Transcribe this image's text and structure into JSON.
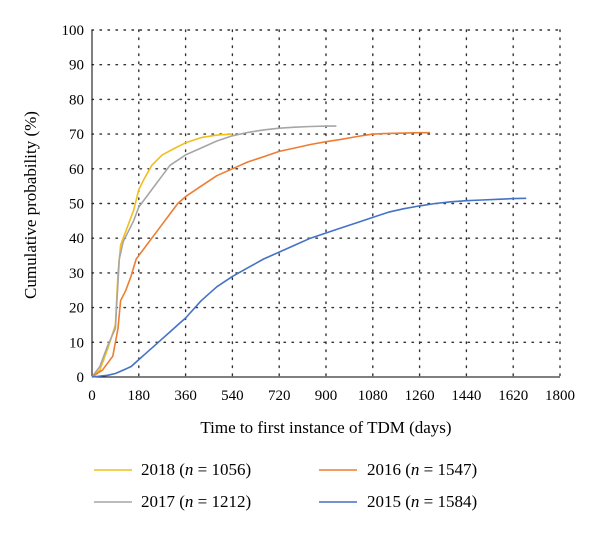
{
  "chart_data": {
    "type": "line",
    "title": "",
    "xlabel": "Time to first instance of TDM (days)",
    "ylabel": "Cumulative probability (%)",
    "xlim": [
      0,
      1800
    ],
    "ylim": [
      0,
      100
    ],
    "x_ticks": [
      "0",
      "180",
      "360",
      "540",
      "720",
      "900",
      "1080",
      "1260",
      "1440",
      "1620",
      "1800"
    ],
    "y_ticks": [
      "0",
      "10",
      "20",
      "30",
      "40",
      "50",
      "60",
      "70",
      "80",
      "90",
      "100"
    ],
    "grid": true,
    "legend_position": "bottom",
    "series": [
      {
        "name": "2018 (n = 1056)",
        "legend_parts": [
          "2018 (",
          "n",
          " = 1056)"
        ],
        "color": "#F2BE1E",
        "x": [
          0,
          30,
          60,
          90,
          100,
          110,
          125,
          140,
          160,
          180,
          200,
          230,
          270,
          320,
          360,
          420,
          480,
          540
        ],
        "y": [
          0,
          2,
          8,
          15,
          30,
          38,
          41,
          44,
          48,
          54,
          57,
          61,
          64,
          66,
          67.5,
          69,
          69.7,
          70
        ]
      },
      {
        "name": "2017 (n = 1212)",
        "legend_parts": [
          "2017 (",
          "n",
          " = 1212)"
        ],
        "color": "#A6A6A6",
        "x": [
          0,
          30,
          60,
          90,
          105,
          120,
          140,
          160,
          180,
          210,
          240,
          270,
          300,
          360,
          420,
          480,
          540,
          600,
          660,
          720,
          780,
          840,
          900,
          940
        ],
        "y": [
          0,
          3,
          9,
          14,
          34,
          39,
          42,
          45,
          49,
          52,
          55,
          58,
          61,
          64,
          66,
          68,
          69.5,
          70.5,
          71.2,
          71.7,
          72,
          72.2,
          72.3,
          72.3
        ]
      },
      {
        "name": "2016 (n = 1547)",
        "legend_parts": [
          "2016 (",
          "n",
          " = 1547)"
        ],
        "color": "#EE7D31",
        "x": [
          0,
          40,
          80,
          100,
          110,
          130,
          150,
          170,
          200,
          240,
          270,
          300,
          330,
          360,
          420,
          480,
          540,
          600,
          660,
          720,
          780,
          840,
          900,
          960,
          1020,
          1080,
          1140,
          1200,
          1260,
          1300
        ],
        "y": [
          0,
          2,
          6,
          14,
          22,
          25,
          29,
          34,
          37,
          41,
          44,
          47,
          50,
          52,
          55,
          58,
          60,
          62,
          63.5,
          65,
          66,
          67,
          67.8,
          68.5,
          69.3,
          70,
          70.2,
          70.3,
          70.4,
          70.4
        ]
      },
      {
        "name": "2015 (n = 1584)",
        "legend_parts": [
          "2015 (",
          "n",
          " = 1584)"
        ],
        "color": "#4472C4",
        "x": [
          0,
          60,
          90,
          120,
          150,
          180,
          210,
          240,
          270,
          300,
          330,
          360,
          420,
          480,
          540,
          600,
          660,
          720,
          780,
          840,
          900,
          960,
          1020,
          1080,
          1140,
          1200,
          1260,
          1320,
          1380,
          1440,
          1500,
          1560,
          1620,
          1670
        ],
        "y": [
          0,
          0.5,
          1,
          2,
          3,
          5,
          7,
          9,
          11,
          13,
          15,
          17,
          22,
          26,
          29,
          31.5,
          34,
          36,
          38,
          40,
          41.5,
          43,
          44.5,
          46,
          47.5,
          48.5,
          49.3,
          50,
          50.5,
          50.8,
          51,
          51.2,
          51.4,
          51.5
        ]
      }
    ]
  }
}
